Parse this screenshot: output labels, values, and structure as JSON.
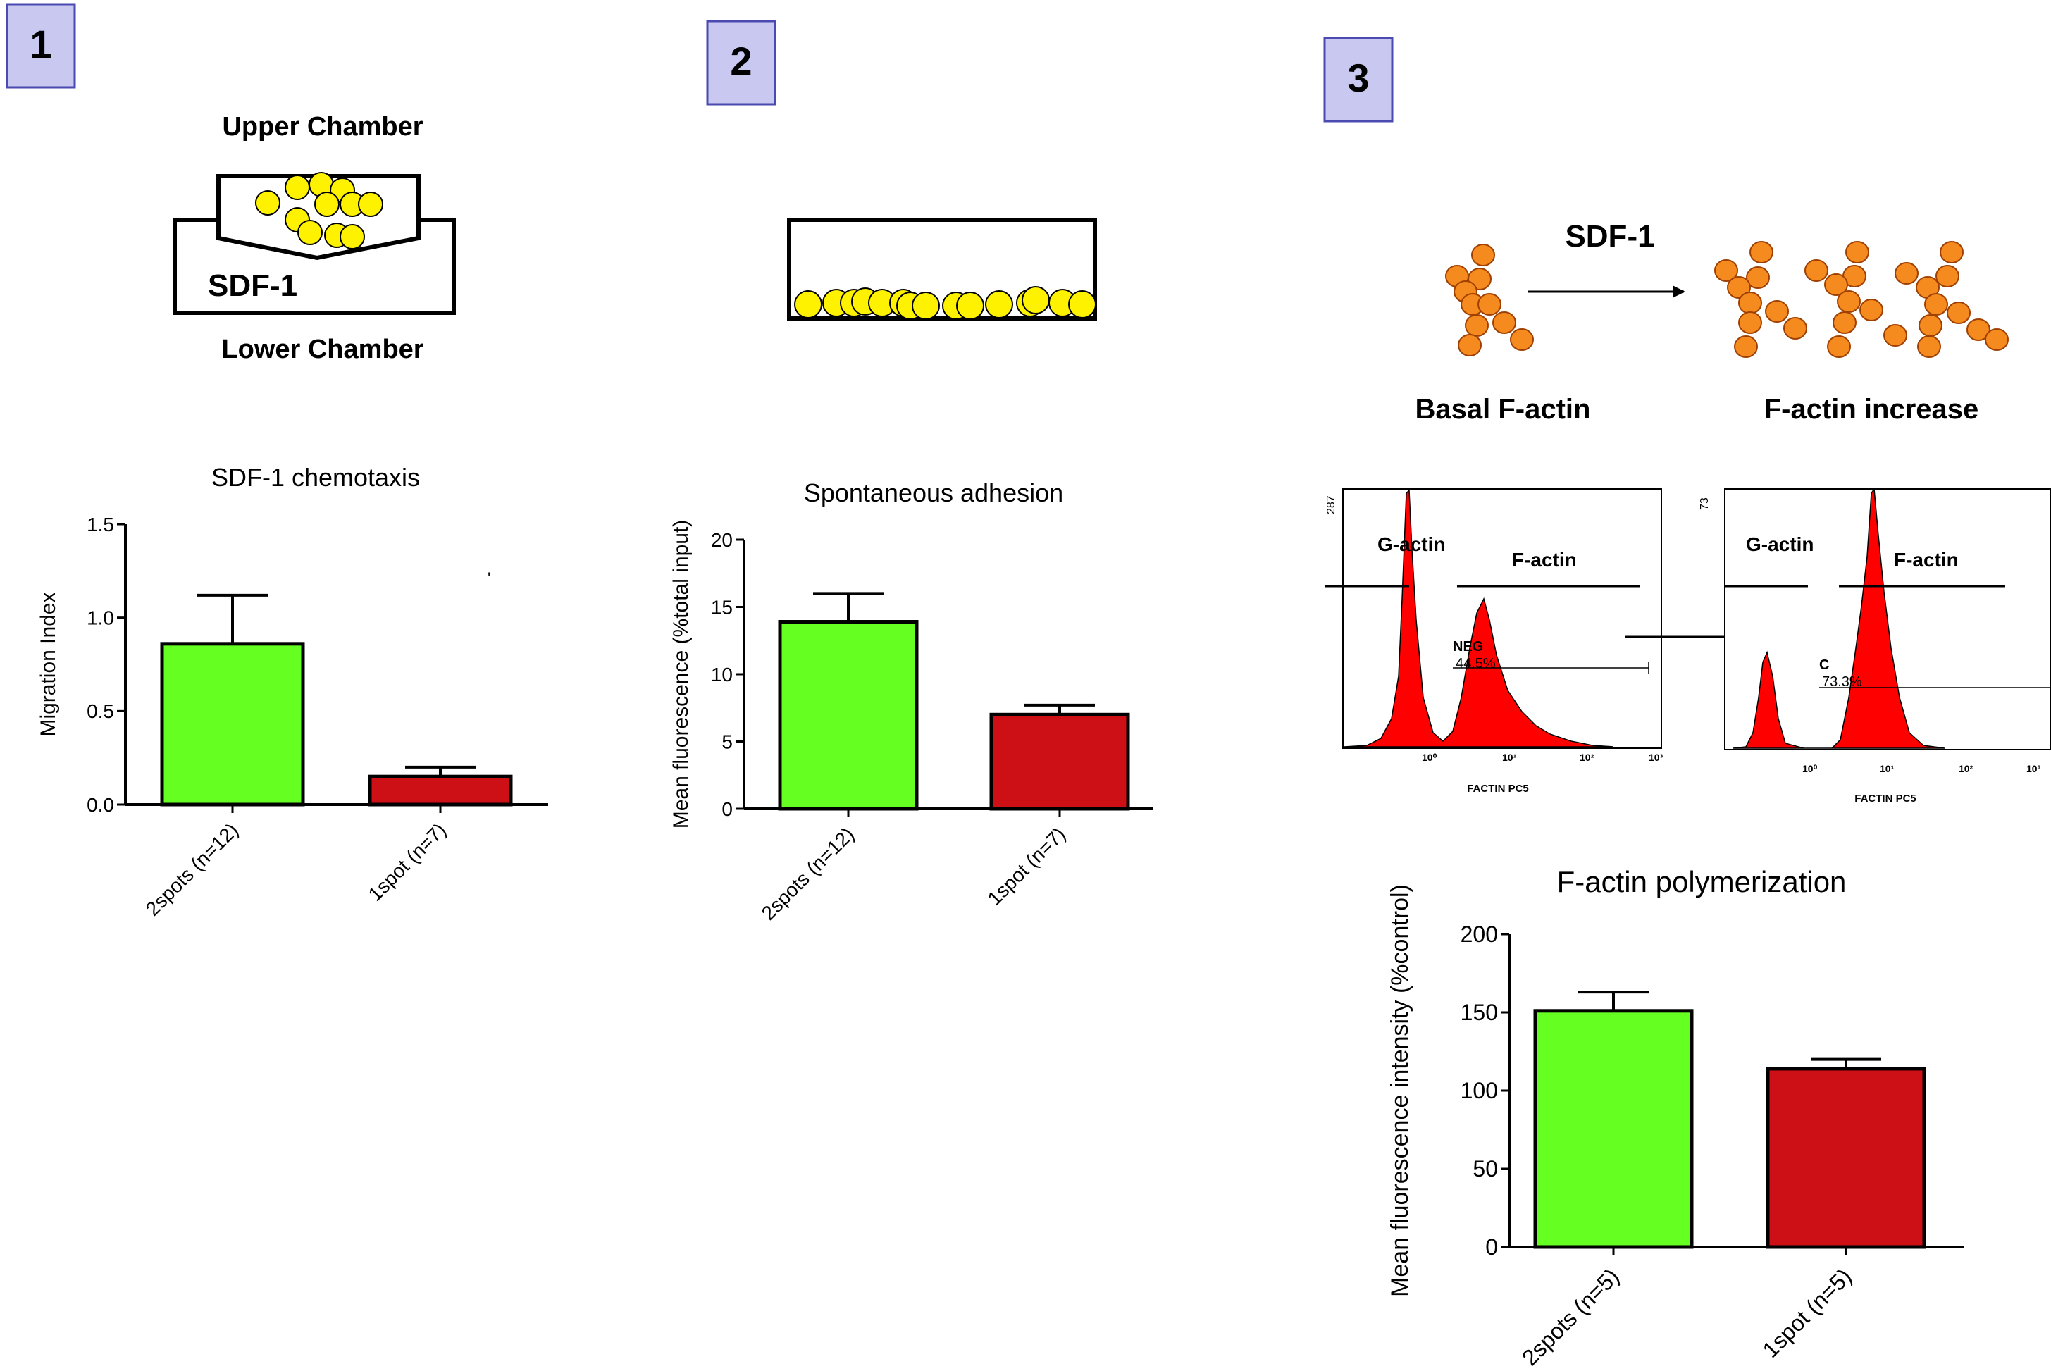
{
  "colors": {
    "green": "#66ff22",
    "red": "#cc1016",
    "yellow_cell": "#fff200",
    "orange_actin": "#f58a1f",
    "badge_fill": "#c8c8f0",
    "badge_border": "#4a4ab0",
    "histogram": "#ff0000"
  },
  "panels": [
    {
      "badge": "1"
    },
    {
      "badge": "2"
    },
    {
      "badge": "3"
    }
  ],
  "diagram1": {
    "upper_label": "Upper Chamber",
    "chemokine_label": "SDF-1",
    "lower_label": "Lower Chamber"
  },
  "diagram3": {
    "stimulus_label": "SDF-1",
    "left_label": "Basal F-actin",
    "right_label": "F-actin increase"
  },
  "flow": {
    "left": {
      "ymax": "287",
      "gate1": "G-actin",
      "gate2": "F-actin",
      "marker_name": "NEG",
      "marker_percent": "44.5%",
      "x_ticks": [
        "10⁰",
        "10¹",
        "10²",
        "10³"
      ],
      "axis_label": "FACTIN PC5"
    },
    "right": {
      "ymax": "73",
      "gate1": "G-actin",
      "gate2": "F-actin",
      "marker_name": "C",
      "marker_percent": "73.3%",
      "x_ticks": [
        "10⁰",
        "10¹",
        "10²",
        "10³"
      ],
      "axis_label": "FACTIN PC5"
    }
  },
  "chart_data": [
    {
      "type": "bar",
      "title": "SDF-1 chemotaxis",
      "ylabel": "Migration Index",
      "xlabel": "",
      "categories": [
        "2spots (n=12)",
        "1spot (n=7)"
      ],
      "values": [
        0.86,
        0.15
      ],
      "errors": [
        0.26,
        0.05
      ],
      "ylim": [
        0,
        1.5
      ],
      "yticks": [
        "0.0",
        "0.5",
        "1.0",
        "1.5"
      ],
      "ytick_values": [
        0,
        0.5,
        1.0,
        1.5
      ]
    },
    {
      "type": "bar",
      "title": "Spontaneous adhesion",
      "ylabel": "Mean fluorescence (%total input)",
      "xlabel": "",
      "categories": [
        "2spots (n=12)",
        "1spot (n=7)"
      ],
      "values": [
        13.9,
        7.0
      ],
      "errors": [
        2.1,
        0.7
      ],
      "ylim": [
        0,
        20
      ],
      "yticks": [
        "0",
        "5",
        "10",
        "15",
        "20"
      ],
      "ytick_values": [
        0,
        5,
        10,
        15,
        20
      ]
    },
    {
      "type": "bar",
      "title": "F-actin polymerization",
      "ylabel": "Mean fluorescence intensity (%control)",
      "xlabel": "",
      "categories": [
        "2spots (n=5)",
        "1spot (n=5)"
      ],
      "values": [
        151,
        114
      ],
      "errors": [
        12,
        6
      ],
      "ylim": [
        0,
        200
      ],
      "yticks": [
        "0",
        "50",
        "100",
        "150",
        "200"
      ],
      "ytick_values": [
        0,
        50,
        100,
        150,
        200
      ]
    }
  ]
}
